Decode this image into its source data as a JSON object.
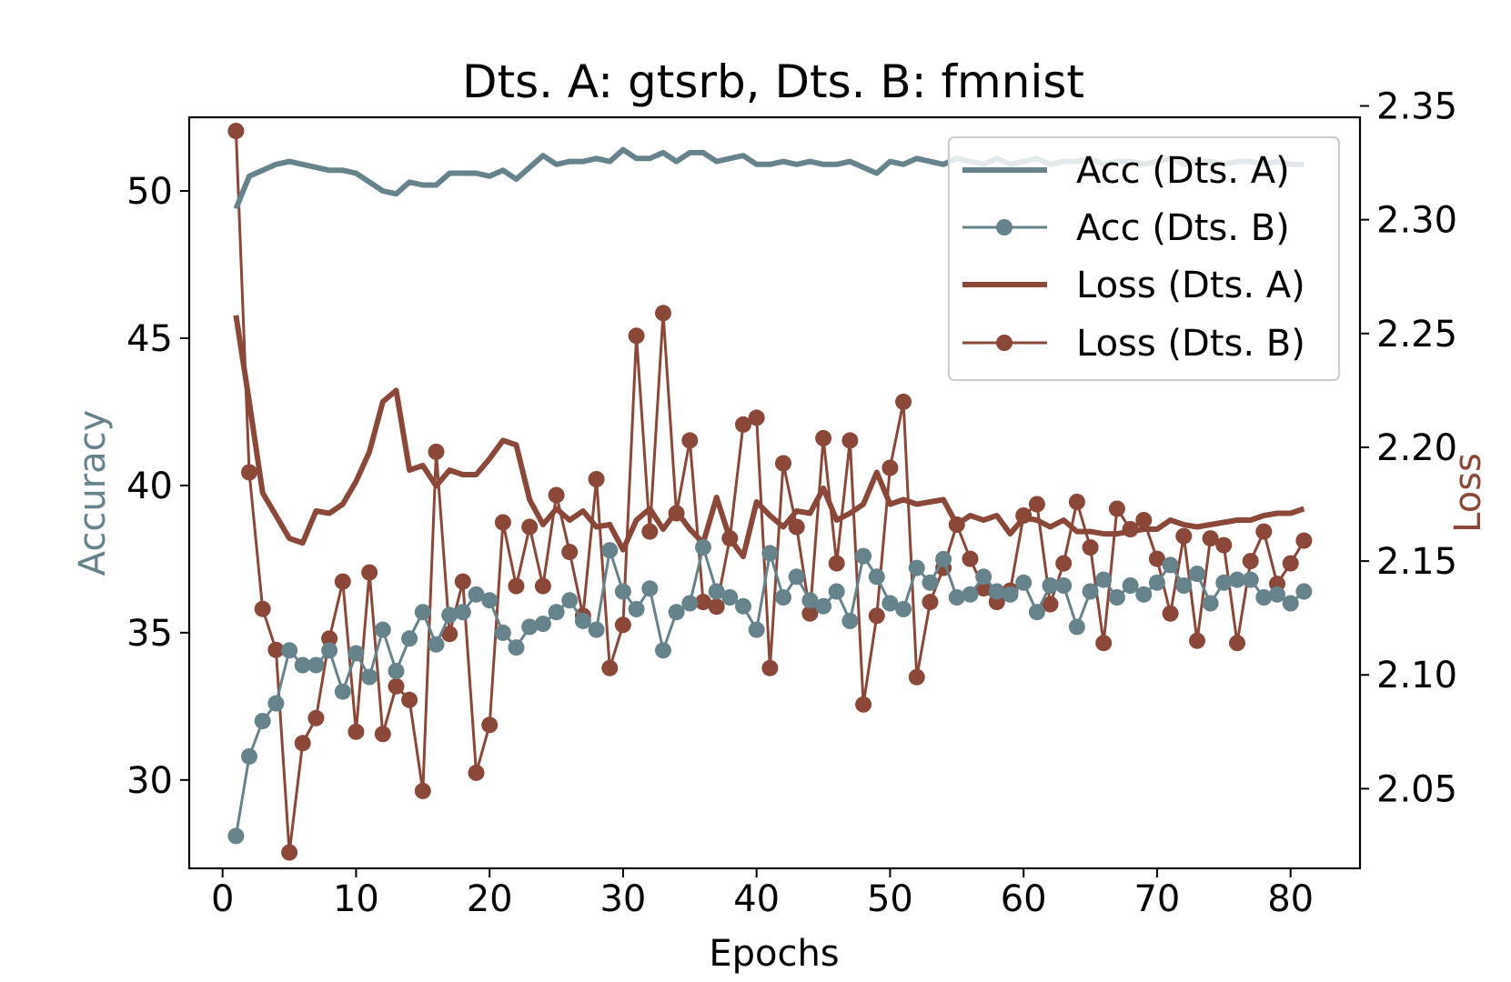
{
  "chart_data": {
    "type": "line",
    "title": "Dts. A: gtsrb, Dts. B: fmnist",
    "xlabel": "Epochs",
    "ylabel_left": "Accuracy",
    "ylabel_right": "Loss",
    "xlim": [
      -2.5,
      85.2
    ],
    "ylim_left": [
      27.0,
      52.5
    ],
    "ylim_right": [
      2.015,
      2.345
    ],
    "xticks": [
      0,
      10,
      20,
      30,
      40,
      50,
      60,
      70,
      80
    ],
    "xtick_labels": [
      "0",
      "10",
      "20",
      "30",
      "40",
      "50",
      "60",
      "70",
      "80"
    ],
    "yticks_left": [
      30,
      35,
      40,
      45,
      50
    ],
    "ytick_labels_left": [
      "30",
      "35",
      "40",
      "45",
      "50"
    ],
    "yticks_right": [
      2.05,
      2.1,
      2.15,
      2.2,
      2.25,
      2.3,
      2.35
    ],
    "ytick_labels_right": [
      "2.05",
      "2.10",
      "2.15",
      "2.20",
      "2.25",
      "2.30",
      "2.35"
    ],
    "legend_position": "upper-right",
    "colors": {
      "acc": "#66838C",
      "loss": "#8B4737"
    },
    "x": [
      1,
      2,
      3,
      4,
      5,
      6,
      7,
      8,
      9,
      10,
      11,
      12,
      13,
      14,
      15,
      16,
      17,
      18,
      19,
      20,
      21,
      22,
      23,
      24,
      25,
      26,
      27,
      28,
      29,
      30,
      31,
      32,
      33,
      34,
      35,
      36,
      37,
      38,
      39,
      40,
      41,
      42,
      43,
      44,
      45,
      46,
      47,
      48,
      49,
      50,
      51,
      52,
      53,
      54,
      55,
      56,
      57,
      58,
      59,
      60,
      61,
      62,
      63,
      64,
      65,
      66,
      67,
      68,
      69,
      70,
      71,
      72,
      73,
      74,
      75,
      76,
      77,
      78,
      79,
      80,
      81
    ],
    "series": [
      {
        "name": "Acc (Dts. A)",
        "axis": "left",
        "style": "thick",
        "color": "#66838C",
        "values": [
          49.4,
          50.5,
          50.7,
          50.9,
          51.0,
          50.9,
          50.8,
          50.7,
          50.7,
          50.6,
          50.3,
          50.0,
          49.9,
          50.3,
          50.2,
          50.2,
          50.6,
          50.6,
          50.6,
          50.5,
          50.7,
          50.4,
          50.8,
          51.2,
          50.9,
          51.0,
          51.0,
          51.1,
          51.0,
          51.4,
          51.1,
          51.1,
          51.3,
          51.0,
          51.3,
          51.3,
          51.0,
          51.1,
          51.2,
          50.9,
          50.9,
          51.0,
          50.9,
          51.0,
          50.9,
          50.9,
          51.0,
          50.8,
          50.6,
          51.0,
          50.9,
          51.1,
          51.0,
          50.9,
          51.1,
          51.0,
          50.9,
          51.1,
          50.9,
          51.0,
          51.1,
          50.9,
          51.0,
          51.0,
          51.1,
          50.9,
          51.0,
          51.0,
          50.9,
          51.0,
          51.1,
          50.9,
          51.0,
          51.0,
          50.9,
          51.0,
          51.0,
          50.9,
          51.0,
          50.9,
          50.9
        ]
      },
      {
        "name": "Acc (Dts. B)",
        "axis": "left",
        "style": "marker",
        "color": "#66838C",
        "values": [
          28.1,
          30.8,
          32.0,
          32.6,
          34.4,
          33.9,
          33.9,
          34.4,
          33.0,
          34.3,
          33.5,
          35.1,
          33.7,
          34.8,
          35.7,
          34.6,
          35.6,
          35.7,
          36.3,
          36.1,
          35.0,
          34.5,
          35.2,
          35.3,
          35.7,
          36.1,
          35.4,
          35.1,
          37.8,
          36.4,
          35.8,
          36.5,
          34.4,
          35.7,
          36.0,
          37.9,
          36.4,
          36.2,
          35.9,
          35.1,
          37.7,
          36.2,
          36.9,
          36.1,
          35.9,
          36.4,
          35.4,
          37.6,
          36.9,
          36.0,
          35.8,
          37.2,
          36.7,
          37.5,
          36.2,
          36.3,
          36.9,
          36.4,
          36.3,
          36.7,
          35.7,
          36.6,
          36.6,
          35.2,
          36.4,
          36.8,
          36.2,
          36.6,
          36.3,
          36.7,
          37.3,
          36.6,
          37.0,
          36.0,
          36.7,
          36.8,
          36.8,
          36.2,
          36.3,
          36.0,
          36.4
        ]
      },
      {
        "name": "Loss (Dts. A)",
        "axis": "right",
        "style": "thick",
        "color": "#8B4737",
        "values": [
          2.258,
          2.22,
          2.18,
          2.17,
          2.16,
          2.158,
          2.172,
          2.171,
          2.175,
          2.185,
          2.198,
          2.22,
          2.225,
          2.19,
          2.192,
          2.183,
          2.19,
          2.188,
          2.188,
          2.195,
          2.203,
          2.201,
          2.177,
          2.166,
          2.173,
          2.168,
          2.172,
          2.165,
          2.166,
          2.155,
          2.168,
          2.173,
          2.164,
          2.172,
          2.164,
          2.158,
          2.178,
          2.16,
          2.152,
          2.176,
          2.17,
          2.165,
          2.172,
          2.171,
          2.182,
          2.168,
          2.171,
          2.175,
          2.189,
          2.175,
          2.177,
          2.175,
          2.176,
          2.177,
          2.166,
          2.17,
          2.168,
          2.17,
          2.162,
          2.169,
          2.168,
          2.165,
          2.168,
          2.163,
          2.163,
          2.162,
          2.162,
          2.163,
          2.164,
          2.164,
          2.168,
          2.166,
          2.165,
          2.166,
          2.167,
          2.168,
          2.168,
          2.17,
          2.171,
          2.171,
          2.173
        ]
      },
      {
        "name": "Loss (Dts. B)",
        "axis": "right",
        "style": "marker",
        "color": "#8B4737",
        "values": [
          2.339,
          2.189,
          2.129,
          2.111,
          2.022,
          2.07,
          2.081,
          2.116,
          2.141,
          2.075,
          2.145,
          2.074,
          2.095,
          2.089,
          2.049,
          2.198,
          2.118,
          2.141,
          2.057,
          2.078,
          2.167,
          2.139,
          2.165,
          2.139,
          2.179,
          2.154,
          2.126,
          2.186,
          2.103,
          2.122,
          2.249,
          2.163,
          2.259,
          2.171,
          2.203,
          2.132,
          2.13,
          2.16,
          2.21,
          2.213,
          2.103,
          2.193,
          2.165,
          2.127,
          2.204,
          2.149,
          2.203,
          2.087,
          2.126,
          2.191,
          2.22,
          2.099,
          2.132,
          2.147,
          2.166,
          2.151,
          2.138,
          2.132,
          2.137,
          2.17,
          2.175,
          2.131,
          2.149,
          2.176,
          2.156,
          2.114,
          2.173,
          2.164,
          2.168,
          2.151,
          2.127,
          2.161,
          2.115,
          2.16,
          2.157,
          2.114,
          2.15,
          2.163,
          2.14,
          2.149,
          2.159
        ]
      }
    ]
  }
}
